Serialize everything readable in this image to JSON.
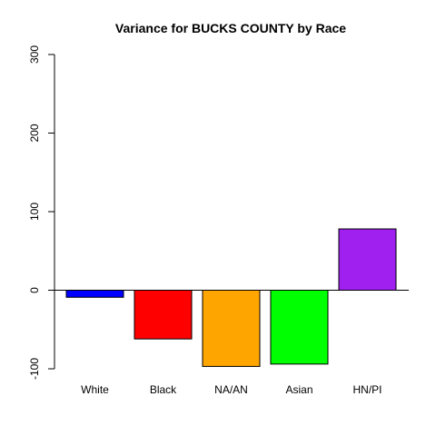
{
  "chart_data": {
    "type": "bar",
    "title": "Variance for BUCKS COUNTY by Race",
    "xlabel": "",
    "ylabel": "",
    "categories": [
      "White",
      "Black",
      "NA/AN",
      "Asian",
      "HN/PI"
    ],
    "values": [
      -9,
      -62,
      -97,
      -94,
      78
    ],
    "colors": [
      "#0000ff",
      "#ff0000",
      "#ffa500",
      "#00ff00",
      "#a020f0"
    ],
    "ylim": [
      -100,
      300
    ],
    "yticks": [
      -100,
      0,
      100,
      200,
      300
    ],
    "ytick_labels": [
      "-100",
      "0",
      "100",
      "200",
      "300"
    ],
    "grid": false,
    "legend": "none"
  }
}
